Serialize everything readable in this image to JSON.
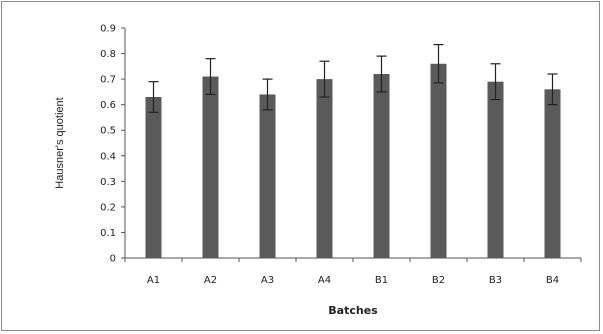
{
  "chart_data": {
    "type": "bar",
    "categories": [
      "A1",
      "A2",
      "A3",
      "A4",
      "B1",
      "B2",
      "B3",
      "B4"
    ],
    "values": [
      0.63,
      0.71,
      0.64,
      0.7,
      0.72,
      0.76,
      0.69,
      0.66
    ],
    "errors": [
      0.06,
      0.07,
      0.06,
      0.07,
      0.07,
      0.075,
      0.07,
      0.06
    ],
    "title": "",
    "xlabel": "Batches",
    "ylabel": "Hausner's quotient",
    "ylim": [
      0,
      0.9
    ],
    "yticks": [
      "0",
      "0.1",
      "0.2",
      "0.3",
      "0.4",
      "0.5",
      "0.6",
      "0.7",
      "0.8",
      "0.9"
    ],
    "grid": false,
    "legend": "none",
    "bar_color": "#5a5a5a"
  }
}
